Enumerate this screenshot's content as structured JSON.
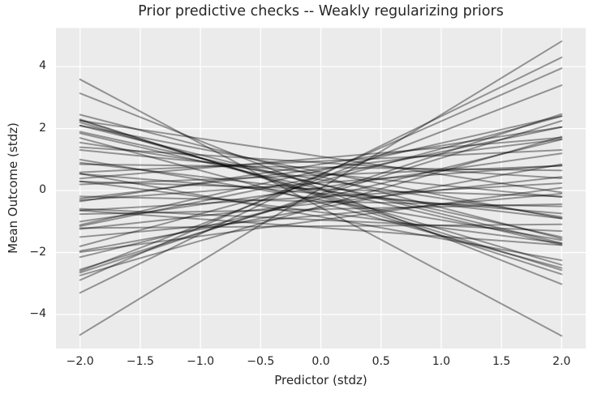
{
  "chart_data": {
    "type": "line",
    "title": "Prior predictive checks -- Weakly regularizing priors",
    "xlabel": "Predictor (stdz)",
    "ylabel": "Mean Outcome (stdz)",
    "x_ticks": [
      -2.0,
      -1.5,
      -1.0,
      -0.5,
      0.0,
      0.5,
      1.0,
      1.5,
      2.0
    ],
    "x_tick_labels": [
      "−2.0",
      "−1.5",
      "−1.0",
      "−0.5",
      "0.0",
      "0.5",
      "1.0",
      "1.5",
      "2.0"
    ],
    "y_ticks": [
      -4,
      -2,
      0,
      2,
      4
    ],
    "y_tick_labels": [
      "−4",
      "−2",
      "0",
      "2",
      "4"
    ],
    "xlim": [
      -2.2,
      2.2
    ],
    "ylim": [
      -5.1,
      5.25
    ],
    "grid": true,
    "legend": false,
    "description": "Sample of 50 regression lines y = intercept + slope * x drawn from weakly regularizing priors, plotted over x in [-2, 2]",
    "line_x_range": [
      -2,
      2
    ],
    "lines_intercept_slope": [
      [
        0.08,
        2.37
      ],
      [
        -0.55,
        -2.07
      ],
      [
        0.06,
        -1.54
      ],
      [
        0.5,
        1.9
      ],
      [
        0.53,
        1.71
      ],
      [
        0.4,
        1.5
      ],
      [
        -0.09,
        1.28
      ],
      [
        -0.15,
        1.2
      ],
      [
        -0.15,
        -1.21
      ],
      [
        -0.2,
        -1.25
      ],
      [
        0.2,
        -0.95
      ],
      [
        0.05,
        -0.9
      ],
      [
        0.2,
        -0.85
      ],
      [
        0.3,
        1.05
      ],
      [
        -0.4,
        -1.05
      ],
      [
        -0.25,
        0.95
      ],
      [
        0.6,
        -0.75
      ],
      [
        0.45,
        0.8
      ],
      [
        -0.3,
        -0.65
      ],
      [
        -0.55,
        0.7
      ],
      [
        0.35,
        -0.6
      ],
      [
        0.1,
        0.55
      ],
      [
        -0.7,
        -0.5
      ],
      [
        0.7,
        0.48
      ],
      [
        0.0,
        -0.45
      ],
      [
        -0.4,
        0.42
      ],
      [
        0.55,
        -0.38
      ],
      [
        -0.8,
        0.35
      ],
      [
        -0.1,
        -0.32
      ],
      [
        0.25,
        0.28
      ],
      [
        0.9,
        -0.25
      ],
      [
        -0.2,
        0.22
      ],
      [
        -0.95,
        -0.18
      ],
      [
        0.5,
        0.15
      ],
      [
        0.05,
        -0.12
      ],
      [
        -0.6,
        0.08
      ],
      [
        0.75,
        -0.05
      ],
      [
        -1.15,
        0.03
      ],
      [
        0.85,
        0.6
      ],
      [
        -0.85,
        -0.7
      ],
      [
        0.65,
        0.88
      ],
      [
        0.45,
        -1.0
      ],
      [
        -0.5,
        1.12
      ],
      [
        -0.1,
        -1.15
      ],
      [
        1.05,
        0.33
      ],
      [
        -1.2,
        -0.28
      ],
      [
        -0.95,
        0.52
      ],
      [
        1.1,
        -0.58
      ],
      [
        0.95,
        0.18
      ],
      [
        -0.35,
        -0.08
      ]
    ],
    "style": {
      "figure_background": "#ffffff",
      "axes_background": "#ebebeb",
      "grid_color": "#ffffff",
      "text_color": "#262626",
      "line_color": "#000000",
      "line_opacity": 0.38,
      "line_width": 2
    }
  }
}
